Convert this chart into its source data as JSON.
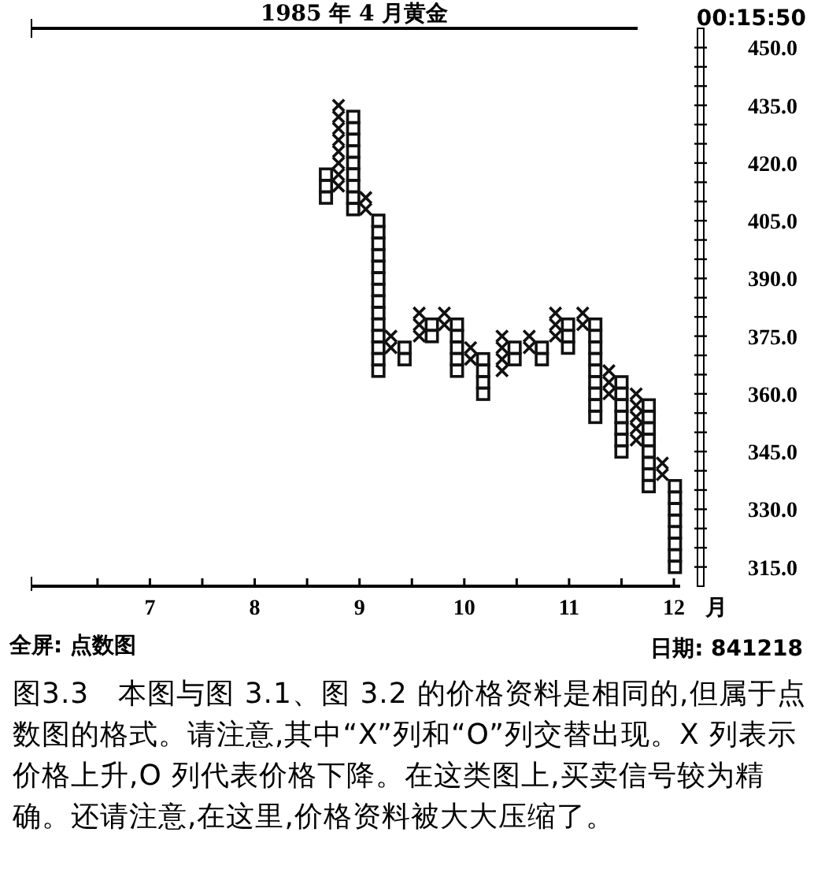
{
  "chart_data": {
    "type": "scatter",
    "title": "1985 年 4 月黄金",
    "xlabel": "月",
    "annotations": [
      "00:15:50",
      "全屏: 点数图",
      "日期: 841218",
      "图3.3　本图与图 3.1、图 3.2 的价格资料是相同的,但属于点数图的格式。请注意,其中“X”列和“O”列交替出现。X 列表示价格上升,O 列代表价格下降。在这类图上,买卖信号较为精确。还请注意,在这里,价格资料被大大压缩了。"
    ],
    "xlim": [
      5.87,
      12.06
    ],
    "ylim": [
      310,
      455
    ],
    "xticks": [
      {
        "value": 6.5,
        "label": null
      },
      7,
      {
        "value": 7.5,
        "label": null
      },
      8,
      {
        "value": 8.5,
        "label": null
      },
      9,
      {
        "value": 9.5,
        "label": null
      },
      10,
      {
        "value": 10.5,
        "label": null
      },
      11,
      {
        "value": 11.5,
        "label": null
      },
      12
    ],
    "yticks": [
      {
        "value": 315,
        "label": "315.0"
      },
      {
        "value": 320,
        "label": null
      },
      {
        "value": 325,
        "label": null
      },
      {
        "value": 330,
        "label": "330.0"
      },
      {
        "value": 335,
        "label": null
      },
      {
        "value": 340,
        "label": null
      },
      {
        "value": 345,
        "label": "345.0"
      },
      {
        "value": 350,
        "label": null
      },
      {
        "value": 355,
        "label": null
      },
      {
        "value": 360,
        "label": "360.0"
      },
      {
        "value": 365,
        "label": null
      },
      {
        "value": 370,
        "label": null
      },
      {
        "value": 375,
        "label": "375.0"
      },
      {
        "value": 380,
        "label": null
      },
      {
        "value": 385,
        "label": null
      },
      {
        "value": 390,
        "label": "390.0"
      },
      {
        "value": 395,
        "label": null
      },
      {
        "value": 400,
        "label": null
      },
      {
        "value": 405,
        "label": "405.0"
      },
      {
        "value": 410,
        "label": null
      },
      {
        "value": 415,
        "label": null
      },
      {
        "value": 420,
        "label": "420.0"
      },
      {
        "value": 425,
        "label": null
      },
      {
        "value": 430,
        "label": null
      },
      {
        "value": 435,
        "label": "435.0"
      },
      {
        "value": 440,
        "label": null
      },
      {
        "value": 445,
        "label": null
      },
      {
        "value": 450,
        "label": "450.0"
      }
    ],
    "grid": false,
    "series": [
      {
        "marker": "cross",
        "color": "#111111",
        "x": [
          8.8,
          8.8,
          8.8,
          8.8,
          8.8,
          8.8,
          8.8,
          8.8,
          9.06,
          9.06,
          9.3,
          9.3,
          9.57,
          9.57,
          9.57,
          9.81,
          9.81,
          10.06,
          10.06,
          10.36,
          10.36,
          10.36,
          10.36,
          10.62,
          10.62,
          10.87,
          10.87,
          10.87,
          11.13,
          11.13,
          11.38,
          11.38,
          11.38,
          11.64,
          11.64,
          11.64,
          11.64,
          11.64,
          11.89,
          11.89
        ],
        "values": [
          414,
          417,
          420,
          423,
          426,
          429,
          432,
          435,
          408,
          411,
          372,
          375,
          375,
          378,
          381,
          378,
          381,
          369,
          372,
          366,
          369,
          372,
          375,
          372,
          375,
          375,
          378,
          381,
          378,
          381,
          360,
          363,
          366,
          348,
          351,
          354,
          357,
          360,
          339,
          342
        ]
      },
      {
        "marker": "square",
        "color": "#111111",
        "x": [
          8.68,
          8.68,
          8.68,
          8.94,
          8.94,
          8.94,
          8.94,
          8.94,
          8.94,
          8.94,
          8.94,
          8.94,
          9.18,
          9.18,
          9.18,
          9.18,
          9.18,
          9.18,
          9.18,
          9.18,
          9.18,
          9.18,
          9.18,
          9.18,
          9.18,
          9.18,
          9.43,
          9.43,
          9.69,
          9.69,
          9.93,
          9.93,
          9.93,
          9.93,
          9.93,
          10.18,
          10.18,
          10.18,
          10.18,
          10.48,
          10.48,
          10.74,
          10.74,
          10.99,
          10.99,
          10.99,
          11.25,
          11.25,
          11.25,
          11.25,
          11.25,
          11.25,
          11.25,
          11.25,
          11.25,
          11.5,
          11.5,
          11.5,
          11.5,
          11.5,
          11.5,
          11.5,
          11.76,
          11.76,
          11.76,
          11.76,
          11.76,
          11.76,
          11.76,
          11.76,
          12.01,
          12.01,
          12.01,
          12.01,
          12.01,
          12.01,
          12.01,
          12.01
        ],
        "values": [
          411,
          414,
          417,
          408,
          411,
          414,
          417,
          420,
          423,
          426,
          429,
          432,
          366,
          369,
          372,
          375,
          378,
          381,
          384,
          387,
          390,
          393,
          396,
          399,
          402,
          405,
          369,
          372,
          375,
          378,
          366,
          369,
          372,
          375,
          378,
          360,
          363,
          366,
          369,
          369,
          372,
          369,
          372,
          372,
          375,
          378,
          354,
          357,
          360,
          363,
          366,
          369,
          372,
          375,
          378,
          345,
          348,
          351,
          354,
          357,
          360,
          363,
          336,
          339,
          342,
          345,
          348,
          351,
          354,
          357,
          315,
          318,
          321,
          324,
          327,
          330,
          333,
          336
        ]
      }
    ]
  }
}
